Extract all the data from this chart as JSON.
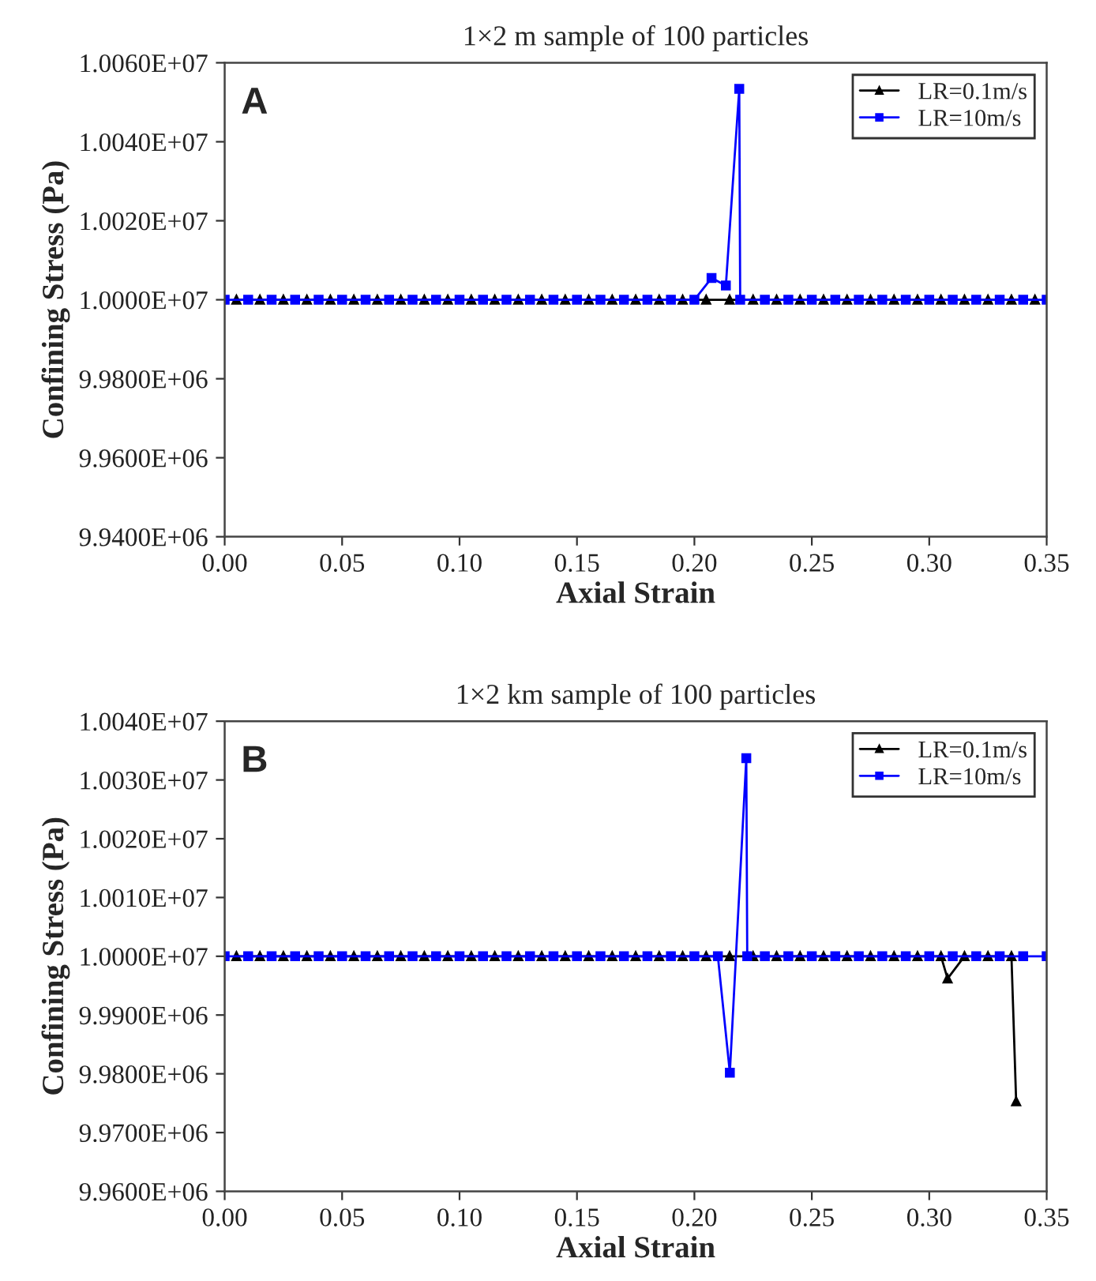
{
  "chart_data": [
    {
      "type": "line",
      "title": "1×2 m sample of 100 particles",
      "xlabel": "Axial Strain",
      "ylabel": "Confining Stress (Pa)",
      "annotations": [
        "A"
      ],
      "xlim": [
        0,
        0.35
      ],
      "ylim": [
        9940000,
        10060000
      ],
      "xticks": [
        {
          "value": 0,
          "label": "0.00"
        },
        {
          "value": 0.05,
          "label": "0.05"
        },
        {
          "value": 0.1,
          "label": "0.10"
        },
        {
          "value": 0.15,
          "label": "0.15"
        },
        {
          "value": 0.2,
          "label": "0.20"
        },
        {
          "value": 0.25,
          "label": "0.25"
        },
        {
          "value": 0.3,
          "label": "0.30"
        },
        {
          "value": 0.35,
          "label": "0.35"
        }
      ],
      "yticks": [
        {
          "value": 9940000,
          "label": "9.9400E+06"
        },
        {
          "value": 9960000,
          "label": "9.9600E+06"
        },
        {
          "value": 9980000,
          "label": "9.9800E+06"
        },
        {
          "value": 10000000,
          "label": "1.0000E+07"
        },
        {
          "value": 10020000,
          "label": "1.0020E+07"
        },
        {
          "value": 10040000,
          "label": "1.0040E+07"
        },
        {
          "value": 10060000,
          "label": "1.0060E+07"
        }
      ],
      "legend": "top right",
      "grid": false,
      "series": [
        {
          "name": "LR=0.1m/s",
          "color": "#000000",
          "marker": "triangle",
          "x": [
            0.005,
            0.015,
            0.025,
            0.035,
            0.045,
            0.055,
            0.065,
            0.075,
            0.085,
            0.095,
            0.105,
            0.115,
            0.125,
            0.135,
            0.145,
            0.155,
            0.165,
            0.175,
            0.185,
            0.195,
            0.205,
            0.215,
            0.225,
            0.235,
            0.245,
            0.255,
            0.265,
            0.275,
            0.285,
            0.295,
            0.305,
            0.315,
            0.325,
            0.335,
            0.345
          ],
          "values": [
            10000000,
            10000000,
            10000000,
            10000000,
            10000000,
            10000000,
            10000000,
            10000000,
            10000000,
            10000000,
            10000000,
            10000000,
            10000000,
            10000000,
            10000000,
            10000000,
            10000000,
            10000000,
            10000000,
            10000000,
            10000000,
            10000000,
            10000000,
            10000000,
            10000000,
            10000000,
            10000000,
            10000000,
            10000000,
            10000000,
            10000000,
            10000000,
            10000000,
            10000000,
            10000000
          ]
        },
        {
          "name": "LR=10m/s",
          "color": "#0000ff",
          "marker": "square",
          "x": [
            0,
            0.01,
            0.02,
            0.03,
            0.04,
            0.05,
            0.06,
            0.07,
            0.08,
            0.09,
            0.1,
            0.11,
            0.12,
            0.13,
            0.14,
            0.15,
            0.16,
            0.17,
            0.18,
            0.19,
            0.2,
            0.2073,
            0.2134,
            0.2191,
            0.2195,
            0.23,
            0.24,
            0.25,
            0.26,
            0.27,
            0.28,
            0.29,
            0.3,
            0.31,
            0.32,
            0.33,
            0.34,
            0.35
          ],
          "values": [
            10000000,
            10000000,
            10000000,
            10000000,
            10000000,
            10000000,
            10000000,
            10000000,
            10000000,
            10000000,
            10000000,
            10000000,
            10000000,
            10000000,
            10000000,
            10000000,
            10000000,
            10000000,
            10000000,
            10000000,
            10000000,
            10005500,
            10003600,
            10053400,
            10000000,
            10000000,
            10000000,
            10000000,
            10000000,
            10000000,
            10000000,
            10000000,
            10000000,
            10000000,
            10000000,
            10000000,
            10000000,
            10000000
          ]
        }
      ]
    },
    {
      "type": "line",
      "title": "1×2 km sample of 100 particles",
      "xlabel": "Axial Strain",
      "ylabel": "Confining Stress (Pa)",
      "annotations": [
        "B"
      ],
      "xlim": [
        0,
        0.35
      ],
      "ylim": [
        9960000,
        10040000
      ],
      "xticks": [
        {
          "value": 0,
          "label": "0.00"
        },
        {
          "value": 0.05,
          "label": "0.05"
        },
        {
          "value": 0.1,
          "label": "0.10"
        },
        {
          "value": 0.15,
          "label": "0.15"
        },
        {
          "value": 0.2,
          "label": "0.20"
        },
        {
          "value": 0.25,
          "label": "0.25"
        },
        {
          "value": 0.3,
          "label": "0.30"
        },
        {
          "value": 0.35,
          "label": "0.35"
        }
      ],
      "yticks": [
        {
          "value": 9960000,
          "label": "9.9600E+06"
        },
        {
          "value": 9970000,
          "label": "9.9700E+06"
        },
        {
          "value": 9980000,
          "label": "9.9800E+06"
        },
        {
          "value": 9990000,
          "label": "9.9900E+06"
        },
        {
          "value": 10000000,
          "label": "1.0000E+07"
        },
        {
          "value": 10010000,
          "label": "1.0010E+07"
        },
        {
          "value": 10020000,
          "label": "1.0020E+07"
        },
        {
          "value": 10030000,
          "label": "1.0030E+07"
        },
        {
          "value": 10040000,
          "label": "1.0040E+07"
        }
      ],
      "legend": "top right",
      "grid": false,
      "series": [
        {
          "name": "LR=0.1m/s",
          "color": "#000000",
          "marker": "triangle",
          "x": [
            0.005,
            0.015,
            0.025,
            0.035,
            0.045,
            0.055,
            0.065,
            0.075,
            0.085,
            0.095,
            0.105,
            0.115,
            0.125,
            0.135,
            0.145,
            0.155,
            0.165,
            0.175,
            0.185,
            0.195,
            0.205,
            0.215,
            0.225,
            0.235,
            0.245,
            0.255,
            0.265,
            0.275,
            0.285,
            0.295,
            0.305,
            0.3078,
            0.315,
            0.325,
            0.335,
            0.337
          ],
          "values": [
            10000000,
            10000000,
            10000000,
            10000000,
            10000000,
            10000000,
            10000000,
            10000000,
            10000000,
            10000000,
            10000000,
            10000000,
            10000000,
            10000000,
            10000000,
            10000000,
            10000000,
            10000000,
            10000000,
            10000000,
            10000000,
            10000000,
            10000000,
            10000000,
            10000000,
            10000000,
            10000000,
            10000000,
            10000000,
            10000000,
            10000000,
            9996200,
            10000000,
            10000000,
            10000000,
            9975300
          ]
        },
        {
          "name": "LR=10m/s",
          "color": "#0000ff",
          "marker": "square",
          "x": [
            0,
            0.01,
            0.02,
            0.03,
            0.04,
            0.05,
            0.06,
            0.07,
            0.08,
            0.09,
            0.1,
            0.11,
            0.12,
            0.13,
            0.14,
            0.15,
            0.16,
            0.17,
            0.18,
            0.19,
            0.2,
            0.21,
            0.2151,
            0.2221,
            0.2225,
            0.23,
            0.24,
            0.25,
            0.26,
            0.27,
            0.28,
            0.29,
            0.3,
            0.31,
            0.32,
            0.33,
            0.34,
            0.35
          ],
          "values": [
            10000000,
            10000000,
            10000000,
            10000000,
            10000000,
            10000000,
            10000000,
            10000000,
            10000000,
            10000000,
            10000000,
            10000000,
            10000000,
            10000000,
            10000000,
            10000000,
            10000000,
            10000000,
            10000000,
            10000000,
            10000000,
            10000000,
            9980200,
            10033700,
            10000000,
            10000000,
            10000000,
            10000000,
            10000000,
            10000000,
            10000000,
            10000000,
            10000000,
            10000000,
            10000000,
            10000000,
            10000000,
            10000000
          ]
        }
      ]
    }
  ]
}
